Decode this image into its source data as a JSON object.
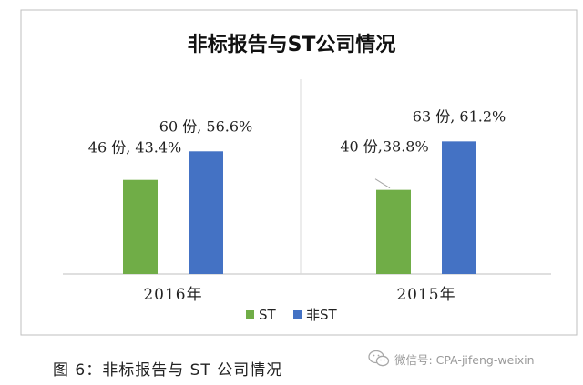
{
  "chart_data": {
    "type": "bar",
    "title": "非标报告与ST公司情况",
    "categories": [
      "2016年",
      "2015年"
    ],
    "series": [
      {
        "name": "ST",
        "color": "#70ad47",
        "values": [
          46,
          40
        ],
        "percent": [
          43.4,
          38.8
        ],
        "labels": [
          "46 份, 43.4%",
          "40 份,38.8%"
        ]
      },
      {
        "name": "非ST",
        "color": "#4472c4",
        "values": [
          60,
          63
        ],
        "percent": [
          56.6,
          61.2
        ],
        "labels": [
          "60 份, 56.6%",
          "63 份, 61.2%"
        ]
      }
    ],
    "ylim": [
      0,
      100
    ],
    "grid": false,
    "legend": "bottom"
  },
  "caption": "图 6：非标报告与 ST 公司情况",
  "watermark": {
    "icon": "wechat-icon",
    "text": "微信号: CPA-jifeng-weixin"
  }
}
